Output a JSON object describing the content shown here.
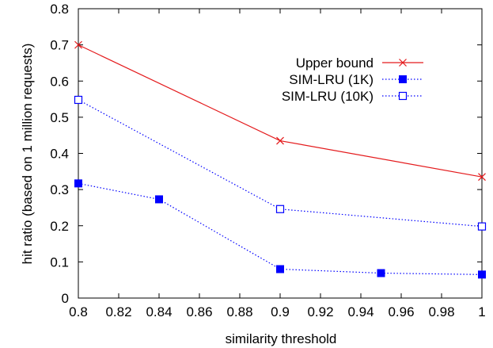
{
  "chart_data": {
    "type": "line",
    "title": "",
    "xlabel": "similarity threshold",
    "ylabel": "hit ratio (based on 1 million requests)",
    "xlim": [
      0.8,
      1.0
    ],
    "ylim": [
      0,
      0.8
    ],
    "xticks": [
      "0.8",
      "0.82",
      "0.84",
      "0.86",
      "0.88",
      "0.9",
      "0.92",
      "0.94",
      "0.96",
      "0.98",
      "1"
    ],
    "yticks": [
      "0",
      "0.1",
      "0.2",
      "0.3",
      "0.4",
      "0.5",
      "0.6",
      "0.7",
      "0.8"
    ],
    "grid": false,
    "legend_position": "top-right",
    "series": [
      {
        "name": "Upper bound",
        "color": "#e41a1c",
        "line_style": "solid",
        "marker": "x",
        "points": [
          [
            0.8,
            0.7
          ],
          [
            0.9,
            0.435
          ],
          [
            1.0,
            0.335
          ]
        ]
      },
      {
        "name": "SIM-LRU (1K)",
        "color": "#0000ff",
        "line_style": "dotted",
        "marker": "filled-square",
        "points": [
          [
            0.8,
            0.317
          ],
          [
            0.84,
            0.273
          ],
          [
            0.9,
            0.08
          ],
          [
            0.95,
            0.069
          ],
          [
            1.0,
            0.065
          ]
        ]
      },
      {
        "name": "SIM-LRU (10K)",
        "color": "#0000ff",
        "line_style": "dotted",
        "marker": "open-square",
        "points": [
          [
            0.8,
            0.548
          ],
          [
            0.9,
            0.246
          ],
          [
            1.0,
            0.198
          ]
        ]
      }
    ]
  }
}
